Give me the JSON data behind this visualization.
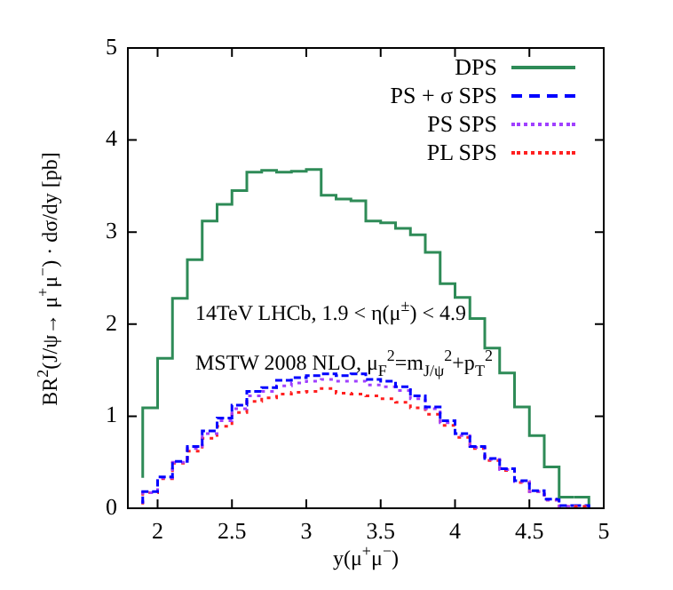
{
  "chart_data": {
    "type": "step",
    "xlabel": "y(μ$^{+}$μ$^{−}$)",
    "ylabel": "BR$^{2}$(J/ψ→ μ$^{+}$μ$^{−}$) · dσ/dy [pb]",
    "annotations": [
      "14TeV LHCb, 1.9 < η(μ$^{±}$) < 4.9",
      "MSTW 2008 NLO, μ$_{F}$$^{2}$=m$_{J/ψ}$$^{2}$+p$_{T}$$^{2}$"
    ],
    "x": [
      1.9,
      2.0,
      2.1,
      2.2,
      2.3,
      2.4,
      2.5,
      2.6,
      2.7,
      2.8,
      2.9,
      3.0,
      3.1,
      3.2,
      3.3,
      3.4,
      3.5,
      3.6,
      3.7,
      3.8,
      3.9,
      4.0,
      4.1,
      4.2,
      4.3,
      4.4,
      4.5,
      4.6,
      4.7,
      4.8
    ],
    "series": [
      {
        "name": "DPS",
        "color": "#2e8b57",
        "line_style": "solid",
        "values": [
          0.33,
          1.09,
          1.63,
          2.28,
          2.7,
          3.12,
          3.3,
          3.45,
          3.65,
          3.67,
          3.65,
          3.66,
          3.68,
          3.4,
          3.36,
          3.34,
          3.12,
          3.1,
          3.04,
          2.97,
          2.78,
          2.44,
          2.29,
          2.06,
          1.74,
          1.47,
          1.1,
          0.79,
          0.45,
          0.12
        ]
      },
      {
        "name": "PS + σ SPS",
        "color": "#0000ff",
        "line_style": "dashed",
        "values": [
          0.05,
          0.18,
          0.34,
          0.51,
          0.67,
          0.84,
          0.98,
          1.12,
          1.27,
          1.31,
          1.39,
          1.42,
          1.44,
          1.46,
          1.44,
          1.46,
          1.4,
          1.38,
          1.32,
          1.22,
          1.1,
          0.95,
          0.81,
          0.67,
          0.54,
          0.43,
          0.3,
          0.19,
          0.1,
          0.03
        ]
      },
      {
        "name": "PS SPS",
        "color": "#a040ff",
        "line_style": "dotted",
        "values": [
          0.05,
          0.17,
          0.33,
          0.5,
          0.65,
          0.81,
          0.95,
          1.08,
          1.22,
          1.27,
          1.33,
          1.36,
          1.38,
          1.4,
          1.38,
          1.38,
          1.34,
          1.32,
          1.28,
          1.19,
          1.08,
          0.93,
          0.79,
          0.66,
          0.53,
          0.42,
          0.29,
          0.18,
          0.09,
          0.02
        ]
      },
      {
        "name": "PL SPS",
        "color": "#ff2020",
        "line_style": "dotted",
        "values": [
          0.04,
          0.17,
          0.32,
          0.49,
          0.62,
          0.76,
          0.89,
          1.04,
          1.16,
          1.2,
          1.24,
          1.26,
          1.27,
          1.3,
          1.25,
          1.24,
          1.22,
          1.19,
          1.15,
          1.09,
          1.02,
          0.9,
          0.77,
          0.65,
          0.52,
          0.41,
          0.28,
          0.18,
          0.09,
          0.02
        ]
      }
    ],
    "xlim": [
      1.8,
      5
    ],
    "xticks": [
      2,
      2.5,
      3,
      3.5,
      4,
      4.5,
      5
    ],
    "ylim": [
      0,
      5
    ],
    "yticks": [
      0,
      1,
      2,
      3,
      4,
      5
    ],
    "legend": "top right"
  }
}
